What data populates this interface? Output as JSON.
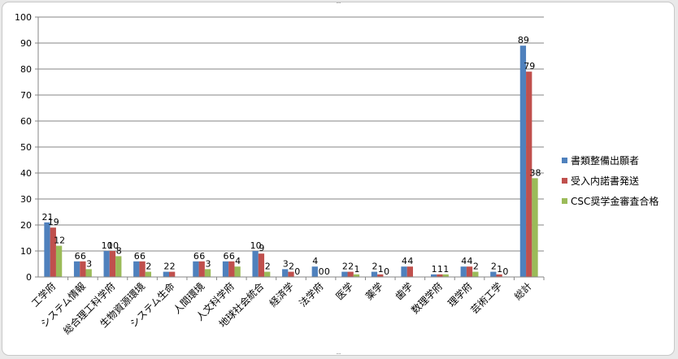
{
  "chart_data": {
    "type": "bar",
    "title": "",
    "xlabel": "",
    "ylabel": "",
    "ylim": [
      0,
      100
    ],
    "yticks": [
      0,
      10,
      20,
      30,
      40,
      50,
      60,
      70,
      80,
      90,
      100
    ],
    "grid": true,
    "legend_position": "right",
    "categories": [
      "工学府",
      "システム情報",
      "総合理工科学府",
      "生物資源環境",
      "システム生命",
      "人間環境",
      "人文科学府",
      "地球社会統合",
      "経済学",
      "法学府",
      "医学",
      "薬学",
      "歯学",
      "数理学府",
      "理学府",
      "芸術工学",
      "総計"
    ],
    "series": [
      {
        "name": "書類整備出願者",
        "color": "#4f81bd",
        "values": [
          21,
          6,
          10,
          6,
          2,
          6,
          6,
          10,
          3,
          4,
          2,
          2,
          4,
          1,
          4,
          2,
          89
        ]
      },
      {
        "name": "受入内諾書発送",
        "color": "#c0504d",
        "values": [
          19,
          6,
          10,
          6,
          2,
          6,
          6,
          9,
          2,
          0,
          2,
          1,
          4,
          1,
          4,
          1,
          79
        ]
      },
      {
        "name": "CSC奨学金審査合格",
        "color": "#9bbb59",
        "values": [
          12,
          3,
          8,
          2,
          0,
          3,
          4,
          2,
          0,
          0,
          1,
          0,
          0,
          1,
          2,
          0,
          38
        ]
      }
    ],
    "hidden_labels": [
      [],
      [],
      [],
      [],
      [
        2
      ],
      [],
      [],
      [],
      [],
      [],
      [],
      [],
      [
        2
      ],
      [],
      [],
      [],
      []
    ]
  }
}
